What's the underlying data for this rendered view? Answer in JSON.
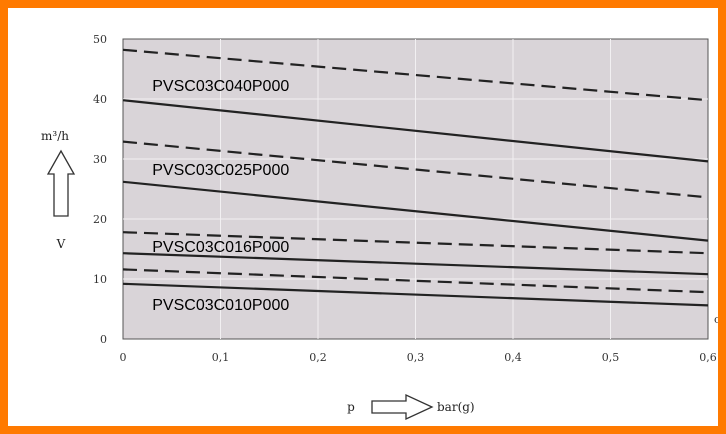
{
  "chart_data": {
    "type": "line",
    "xlabel": "p",
    "xunit": "bar(g)",
    "ylabel": "m³/h",
    "ysymbol": "V",
    "xlim": [
      0,
      0.6
    ],
    "ylim": [
      0,
      50
    ],
    "xticks": [
      "0",
      "0,1",
      "0,2",
      "0,3",
      "0,4",
      "0,5",
      "0,6"
    ],
    "yticks": [
      "0",
      "10",
      "20",
      "30",
      "40",
      "50"
    ],
    "grid": true,
    "colors": {
      "plot_bg": "#d9d4d8",
      "grid": "#f2f0f2",
      "line": "#222222",
      "frame": "#ff7a00"
    },
    "labels": [
      {
        "text": "PVSC03C040P000",
        "x": 0.03,
        "y": 41.3
      },
      {
        "text": "PVSC03C025P000",
        "x": 0.03,
        "y": 27.3
      },
      {
        "text": "PVSC03C016P000",
        "x": 0.03,
        "y": 14.5
      },
      {
        "text": "PVSC03C010P000",
        "x": 0.03,
        "y": 4.8
      }
    ],
    "series": [
      {
        "style": "dashed",
        "x": [
          0,
          0.6
        ],
        "y": [
          48.2,
          39.8
        ]
      },
      {
        "style": "solid",
        "x": [
          0,
          0.6
        ],
        "y": [
          39.8,
          29.6
        ]
      },
      {
        "style": "dashed",
        "x": [
          0,
          0.6
        ],
        "y": [
          32.9,
          23.6
        ]
      },
      {
        "style": "solid",
        "x": [
          0,
          0.6
        ],
        "y": [
          26.2,
          16.4
        ]
      },
      {
        "style": "dashed",
        "x": [
          0,
          0.6
        ],
        "y": [
          17.8,
          14.3
        ]
      },
      {
        "style": "solid",
        "x": [
          0,
          0.6
        ],
        "y": [
          14.3,
          10.8
        ]
      },
      {
        "style": "dashed",
        "x": [
          0,
          0.6
        ],
        "y": [
          11.6,
          7.8
        ]
      },
      {
        "style": "solid",
        "x": [
          0,
          0.6
        ],
        "y": [
          9.2,
          5.6
        ]
      }
    ],
    "stray_mark": "o"
  }
}
